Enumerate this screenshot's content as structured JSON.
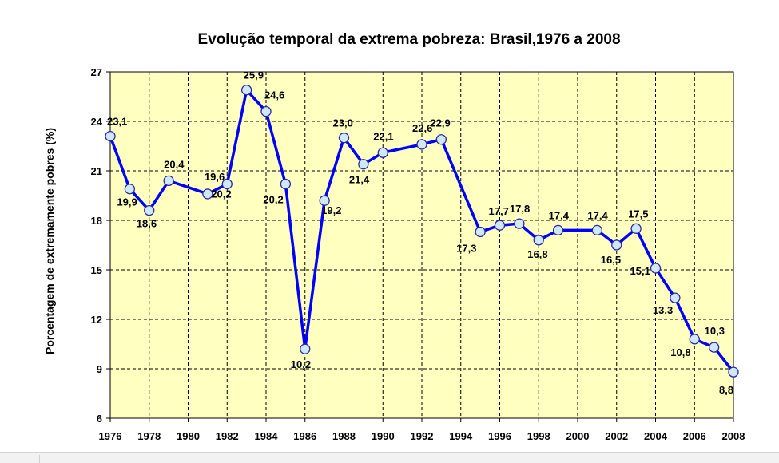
{
  "chart_data": {
    "type": "line",
    "title": "Evolução temporal da extrema pobreza: Brasil,1976 a 2008",
    "ylabel": "Porcentagem de extremamente pobres (%)",
    "xlabel": "",
    "xlim": [
      1976,
      2008
    ],
    "ylim": [
      6,
      27
    ],
    "yticks": [
      "6",
      "9",
      "12",
      "15",
      "18",
      "21",
      "24",
      "27"
    ],
    "xticks": [
      "1976",
      "1978",
      "1980",
      "1982",
      "1984",
      "1986",
      "1988",
      "1990",
      "1992",
      "1994",
      "1996",
      "1998",
      "2000",
      "2002",
      "2004",
      "2006",
      "2008"
    ],
    "grid": true,
    "plot_background": "#ffffc0",
    "line_color": "#0000ff",
    "marker_fill": "#cfe7ff",
    "series": [
      {
        "x": [
          1976,
          1977,
          1978,
          1979,
          1981,
          1982,
          1983,
          1984,
          1985,
          1986,
          1987,
          1988,
          1989,
          1990,
          1992,
          1993,
          1995,
          1996,
          1997,
          1998,
          1999,
          2001,
          2002,
          2003,
          2004,
          2005,
          2006,
          2007,
          2008
        ],
        "values": [
          23.1,
          19.9,
          18.6,
          20.4,
          19.6,
          20.2,
          25.9,
          24.6,
          20.2,
          10.2,
          19.2,
          23.0,
          21.4,
          22.1,
          22.6,
          22.9,
          17.3,
          17.7,
          17.8,
          16.8,
          17.4,
          17.4,
          16.5,
          17.5,
          15.1,
          13.3,
          10.8,
          10.3,
          8.8
        ],
        "labels": [
          "23,1",
          "19,9",
          "18,6",
          "20,4",
          "19,6",
          "20,2",
          "25,9",
          "24,6",
          "20,2",
          "10,2",
          "19,2",
          "23,0",
          "21,4",
          "22,1",
          "22,6",
          "22,9",
          "17,3",
          "17,7",
          "17,8",
          "16,8",
          "17,4",
          "17,4",
          "16,5",
          "17,5",
          "15,1",
          "13,3",
          "10,8",
          "10,3",
          "8,8"
        ]
      }
    ]
  }
}
